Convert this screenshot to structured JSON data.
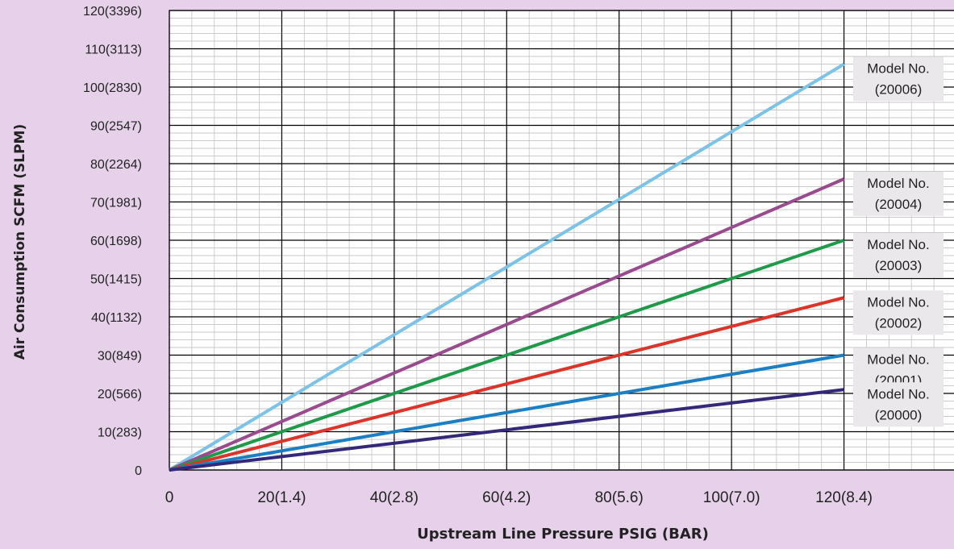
{
  "chart_data": {
    "type": "line",
    "title": "",
    "xlabel": "Upstream Line Pressure  PSIG (BAR)",
    "ylabel": "Air Consumption SCFM (SLPM)",
    "xlim": [
      0,
      140
    ],
    "ylim": [
      0,
      120
    ],
    "x_ticks": [
      {
        "value": 0,
        "label": "0"
      },
      {
        "value": 20,
        "label": "20(1.4)"
      },
      {
        "value": 40,
        "label": "40(2.8)"
      },
      {
        "value": 60,
        "label": "60(4.2)"
      },
      {
        "value": 80,
        "label": "80(5.6)"
      },
      {
        "value": 100,
        "label": "100(7.0)"
      },
      {
        "value": 120,
        "label": "120(8.4)"
      }
    ],
    "y_ticks": [
      {
        "value": 0,
        "label": "0"
      },
      {
        "value": 10,
        "label": "10(283)"
      },
      {
        "value": 20,
        "label": "20(566)"
      },
      {
        "value": 30,
        "label": "30(849)"
      },
      {
        "value": 40,
        "label": "40(1132)"
      },
      {
        "value": 50,
        "label": "50(1415)"
      },
      {
        "value": 60,
        "label": "60(1698)"
      },
      {
        "value": 70,
        "label": "70(1981)"
      },
      {
        "value": 80,
        "label": "80(2264)"
      },
      {
        "value": 90,
        "label": "90(2547)"
      },
      {
        "value": 100,
        "label": "100(2830)"
      },
      {
        "value": 110,
        "label": "110(3113)"
      },
      {
        "value": 120,
        "label": "120(3396)"
      }
    ],
    "grid": true,
    "series": [
      {
        "name": "Model No.\n(20006)",
        "line1": "Model No.",
        "line2": "(20006)",
        "color": "#7cc3ea",
        "x": [
          0,
          120
        ],
        "y": [
          0,
          106
        ]
      },
      {
        "name": "Model No.\n(20004)",
        "line1": "Model No.",
        "line2": "(20004)",
        "color": "#9a4a8e",
        "x": [
          0,
          120
        ],
        "y": [
          0,
          76
        ]
      },
      {
        "name": "Model No.\n(20003)",
        "line1": "Model No.",
        "line2": "(20003)",
        "color": "#1e9a4a",
        "x": [
          0,
          120
        ],
        "y": [
          0,
          60
        ]
      },
      {
        "name": "Model No.\n(20002)",
        "line1": "Model No.",
        "line2": "(20002)",
        "color": "#dd3328",
        "x": [
          0,
          120
        ],
        "y": [
          0,
          45
        ]
      },
      {
        "name": "Model No.\n(20001)",
        "line1": "Model No.",
        "line2": "(20001)",
        "color": "#1a7fc4",
        "x": [
          0,
          120
        ],
        "y": [
          0,
          30
        ]
      },
      {
        "name": "Model No.\n(20000)",
        "line1": "Model No.",
        "line2": "(20000)",
        "color": "#33287a",
        "x": [
          0,
          120
        ],
        "y": [
          0,
          21
        ]
      }
    ]
  }
}
